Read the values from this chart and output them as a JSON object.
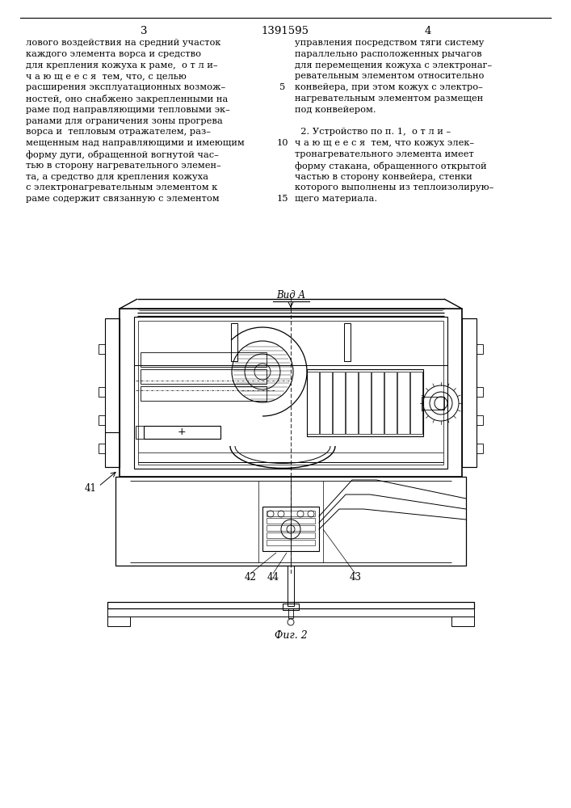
{
  "page_number_left": "3",
  "patent_number": "1391595",
  "page_number_right": "4",
  "left_column_text": [
    "лового воздействия на средний участок",
    "каждого элемента ворса и средство",
    "для крепления кожуха к раме,  о т л и–",
    "ч а ю щ е е с я  тем, что, с целью",
    "расширения эксплуатационных возмож–",
    "ностей, оно снабжено закрепленными на",
    "раме под направляющими тепловыми эк–",
    "ранами для ограничения зоны прогрева",
    "ворса и  тепловым отражателем, раз–",
    "мещенным над направляющими и имеющим",
    "форму дуги, обращенной вогнутой час–",
    "тью в сторону нагревательного элемен–",
    "та, а средство для крепления кожуха",
    "с электронагревательным элементом к",
    "раме содержит связанную с элементом"
  ],
  "right_column_text": [
    "управления посредством тяги систему",
    "параллельно расположенных рычагов",
    "для перемещения кожуха с электронаг–",
    "ревательным элементом относительно",
    "конвейера, при этом кожух с электро–",
    "нагревательным элементом размещен",
    "под конвейером.",
    "",
    "  2. Устройство по п. 1,  о т л и –",
    "ч а ю щ е е с я  тем, что кожух элек–",
    "тронагревательного элемента имеет",
    "форму стакана, обращенного открытой",
    "частью в сторону конвейера, стенки",
    "которого выполнены из теплоизолирую–",
    "щего материала."
  ],
  "view_label": "Вид A",
  "fig_label": "Фиг. 2",
  "label_41": "41",
  "label_42": "42",
  "label_44": "44",
  "label_43": "43",
  "background_color": "#ffffff",
  "text_color": "#000000"
}
